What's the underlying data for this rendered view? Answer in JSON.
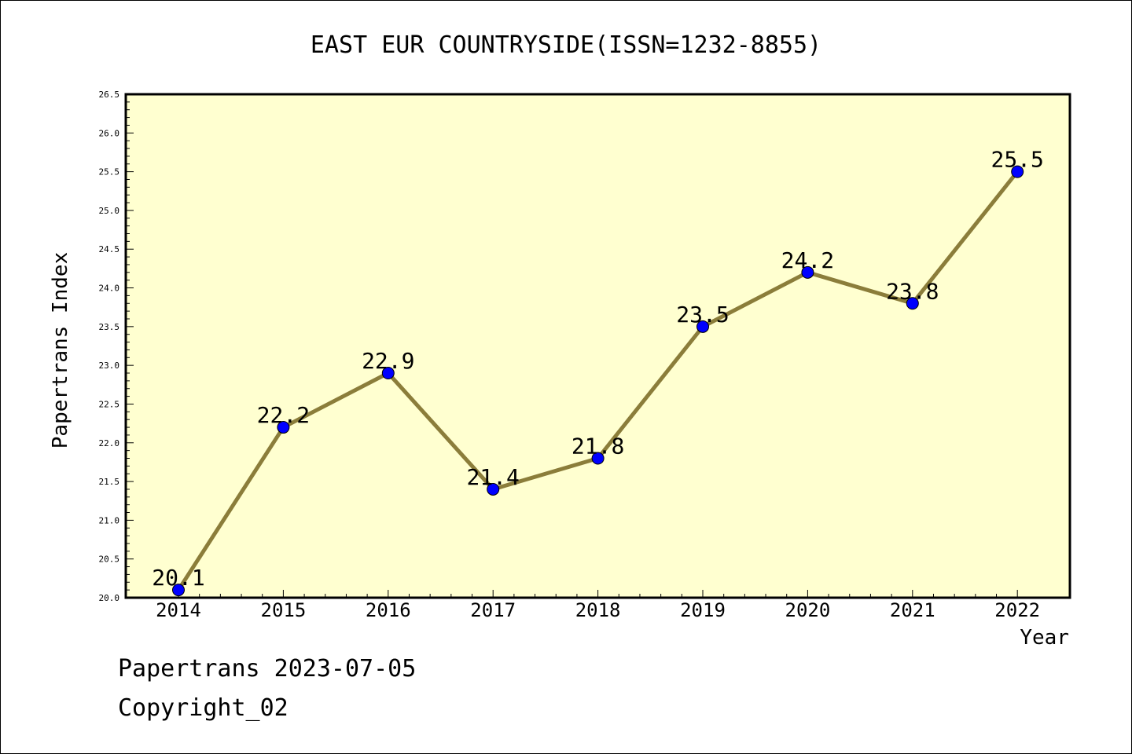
{
  "chart_data": {
    "type": "line",
    "title": "EAST EUR COUNTRYSIDE(ISSN=1232-8855)",
    "xlabel": "Year",
    "ylabel": "Papertrans Index",
    "categories": [
      "2014",
      "2015",
      "2016",
      "2017",
      "2018",
      "2019",
      "2020",
      "2021",
      "2022"
    ],
    "values": [
      20.1,
      22.2,
      22.9,
      21.4,
      21.8,
      23.5,
      24.2,
      23.8,
      25.5
    ],
    "data_labels": [
      "20.1",
      "22.2",
      "22.9",
      "21.4",
      "21.8",
      "23.5",
      "24.2",
      "23.8",
      "25.5"
    ],
    "ylim": [
      20.0,
      26.5
    ],
    "yticks": [
      "20.0",
      "20.5",
      "21.0",
      "21.5",
      "22.0",
      "22.5",
      "23.0",
      "23.5",
      "24.0",
      "24.5",
      "25.0",
      "25.5",
      "26.0",
      "26.5"
    ],
    "grid": false,
    "colors": {
      "plot_background": "#ffffd0",
      "line": "#8b7d3a",
      "marker": "#0000ff"
    }
  },
  "footer": {
    "line1": "Papertrans 2023-07-05",
    "line2": "Copyright_02"
  }
}
